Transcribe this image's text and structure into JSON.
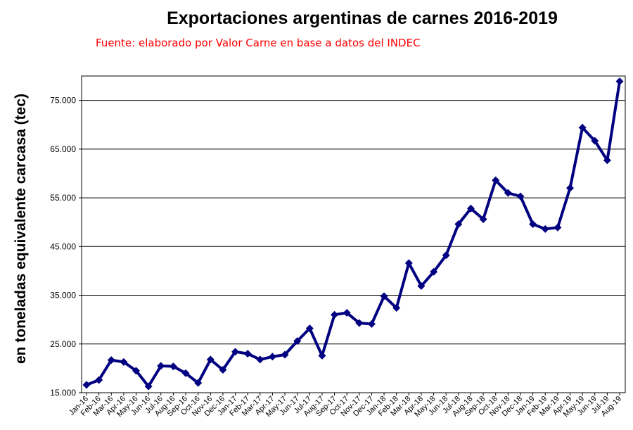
{
  "colors": {
    "series": "#000080",
    "subtitle": "#ff0000",
    "grid": "#000000"
  },
  "chart_data": {
    "type": "line",
    "title": "Exportaciones argentinas de carnes 2016-2019",
    "subtitle": "Fuente: elaborado por Valor Carne en base a datos del INDEC",
    "ylabel": "en toneladas equivalente carcasa (tec)",
    "xlabel": "",
    "ylim": [
      15000,
      80000
    ],
    "yticks": [
      15000,
      25000,
      35000,
      45000,
      55000,
      65000,
      75000
    ],
    "ytick_labels": [
      "15.000",
      "25.000",
      "35.000",
      "45.000",
      "55.000",
      "65.000",
      "75.000"
    ],
    "grid": "horizontal",
    "legend": "none",
    "marker": "diamond",
    "categories": [
      "Jan-16",
      "Feb-16",
      "Mar-16",
      "Apr-16",
      "May-16",
      "Jun-16",
      "Jul-16",
      "Aug-16",
      "Sep-16",
      "Oct-16",
      "Nov-16",
      "Dec-16",
      "Jan-17",
      "Feb-17",
      "Mar-17",
      "Apr-17",
      "May-17",
      "Jun-17",
      "Jul-17",
      "Aug-17",
      "Sep-17",
      "Oct-17",
      "Nov-17",
      "Dec-17",
      "Jan-18",
      "Feb-18",
      "Mar-18",
      "Apr-18",
      "May-18",
      "Jun-18",
      "Jul-18",
      "Aug-18",
      "Sep-18",
      "Oct-18",
      "Nov-18",
      "Dec-18",
      "Jan-19",
      "Feb-19",
      "Mar-19",
      "Apr-19",
      "May-19",
      "Jun-19",
      "Jul-19",
      "Aug-19"
    ],
    "values": [
      16600,
      17600,
      21700,
      21300,
      19500,
      16300,
      20500,
      20400,
      19000,
      17000,
      21800,
      19700,
      23400,
      23000,
      21800,
      22400,
      22800,
      25600,
      28200,
      22600,
      31000,
      31400,
      29300,
      29100,
      34800,
      32400,
      41600,
      36900,
      39800,
      43200,
      49600,
      52800,
      50600,
      58600,
      56000,
      55300,
      49600,
      48600,
      48900,
      57000,
      69400,
      66700,
      62700,
      78900
    ]
  }
}
